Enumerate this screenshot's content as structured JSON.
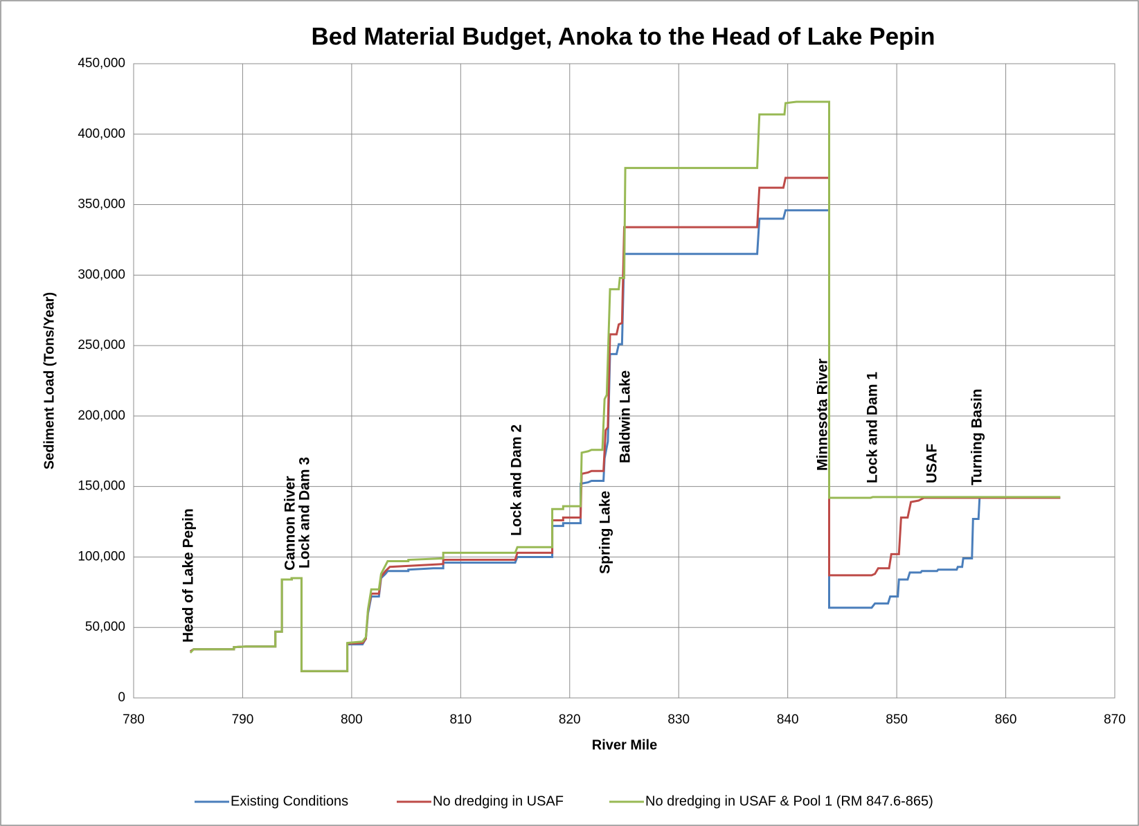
{
  "chart_data": {
    "type": "line",
    "title": "Bed Material Budget, Anoka to the Head of Lake Pepin",
    "x_label": "River Mile",
    "y_label": "Sediment Load (Tons/Year)",
    "xlim": [
      780,
      870
    ],
    "xticks": [
      780,
      790,
      800,
      810,
      820,
      830,
      840,
      850,
      860,
      870
    ],
    "ylim": [
      0,
      450000
    ],
    "yticks": [
      0,
      {
        "value": 50000,
        "label": "50,000"
      },
      {
        "value": 100000,
        "label": "100,000"
      },
      {
        "value": 150000,
        "label": "150,000"
      },
      {
        "value": 200000,
        "label": "200,000"
      },
      {
        "value": 250000,
        "label": "250,000"
      },
      {
        "value": 300000,
        "label": "300,000"
      },
      {
        "value": 350000,
        "label": "350,000"
      },
      {
        "value": 400000,
        "label": "400,000"
      },
      {
        "value": 450000,
        "label": "450,000"
      }
    ],
    "grid": true,
    "legend": "bottom",
    "annotations": [
      "Head of Lake Pepin",
      "Cannon River",
      "Lock and Dam 3",
      "Lock and Dam 2",
      "Spring Lake",
      "Baldwin Lake",
      "Minnesota River",
      "Lock and Dam 1",
      "USAF",
      "Turning Basin"
    ],
    "series": [
      {
        "name": "Existing Conditions",
        "color": "#4a7ebb",
        "x": [
          785.2,
          785.5,
          789.2,
          789.2,
          790.3,
          793,
          793,
          793.6,
          793.6,
          794.5,
          794.5,
          795.4,
          795.4,
          799.6,
          799.6,
          801,
          801.3,
          801.5,
          801.8,
          802.5,
          802.7,
          803.1,
          803.3,
          805.2,
          805.2,
          807.5,
          808.4,
          808.4,
          815,
          815.2,
          818.4,
          818.4,
          819.4,
          819.4,
          821,
          821,
          821.7,
          822,
          823.1,
          823.2,
          823.5,
          823.7,
          824.3,
          824.5,
          824.8,
          825,
          837.2,
          837.4,
          839.6,
          839.8,
          843.8,
          843.8,
          847.7,
          848,
          849.2,
          849.4,
          850.1,
          850.2,
          851,
          851.2,
          852.2,
          852.3,
          853.7,
          853.8,
          855.5,
          855.6,
          856,
          856.1,
          856.9,
          857,
          857.5,
          857.6,
          865
        ],
        "values": [
          33000,
          34500,
          34500,
          36000,
          36500,
          36500,
          47000,
          47000,
          84000,
          84000,
          85000,
          85000,
          19000,
          19000,
          38000,
          38000,
          42000,
          60000,
          72000,
          72000,
          85000,
          88000,
          90000,
          90000,
          91000,
          92000,
          92000,
          96000,
          96000,
          100000,
          100000,
          122000,
          122000,
          124000,
          124000,
          152000,
          153000,
          154000,
          154000,
          170000,
          182000,
          244000,
          244000,
          251000,
          251000,
          315000,
          315000,
          340000,
          340000,
          346000,
          346000,
          64000,
          64000,
          67000,
          67000,
          72000,
          72000,
          84000,
          84000,
          89000,
          89000,
          90000,
          90000,
          91000,
          91000,
          93000,
          93000,
          99000,
          99000,
          127000,
          127000,
          142000,
          142000
        ]
      },
      {
        "name": "No dredging in USAF",
        "color": "#be4b48",
        "x": [
          785.2,
          785.5,
          789.2,
          789.2,
          790.3,
          793,
          793,
          793.6,
          793.6,
          794.5,
          794.5,
          795.4,
          795.4,
          799.6,
          799.6,
          801,
          801.3,
          801.5,
          801.8,
          802.5,
          802.7,
          803.1,
          803.5,
          808.4,
          808.4,
          815,
          815.2,
          818.4,
          818.4,
          819.4,
          819.4,
          821,
          821.1,
          821.7,
          822,
          823.1,
          823.3,
          823.5,
          823.7,
          824.3,
          824.5,
          824.8,
          825,
          837.2,
          837.4,
          839.6,
          839.8,
          843.8,
          843.8,
          847.7,
          848,
          848.3,
          849.3,
          849.5,
          850.2,
          850.4,
          851,
          851.3,
          852,
          852.5,
          865
        ],
        "values": [
          33000,
          34500,
          34500,
          36000,
          36500,
          36500,
          47000,
          47000,
          84000,
          84000,
          85000,
          85000,
          19000,
          19000,
          38500,
          39000,
          42000,
          62000,
          74000,
          74000,
          86000,
          90000,
          93000,
          95000,
          98000,
          98000,
          103000,
          103000,
          126000,
          126000,
          128000,
          128000,
          159000,
          160000,
          161000,
          161000,
          190000,
          192000,
          258000,
          258000,
          265000,
          266000,
          334000,
          334000,
          362000,
          362000,
          369000,
          369000,
          87000,
          87000,
          88000,
          92000,
          92000,
          102000,
          102000,
          128000,
          128000,
          139000,
          140000,
          142000,
          142000
        ]
      },
      {
        "name": "No dredging in USAF & Pool 1 (RM 847.6-865)",
        "color": "#98b954",
        "x": [
          785.2,
          785.5,
          789.2,
          789.2,
          790.3,
          793,
          793,
          793.6,
          793.6,
          794.5,
          794.5,
          795.4,
          795.4,
          799.6,
          799.6,
          801,
          801.3,
          801.5,
          801.8,
          802.5,
          802.7,
          803.1,
          803.3,
          805.2,
          805.2,
          808.4,
          808.4,
          815,
          815.2,
          818.4,
          818.4,
          819.4,
          819.4,
          821,
          821.1,
          821.7,
          822,
          823,
          823.2,
          823.4,
          823.7,
          824.5,
          824.6,
          825,
          825.1,
          837.2,
          837.4,
          839.7,
          839.8,
          840.8,
          843.8,
          843.8,
          847.6,
          847.8,
          865
        ],
        "values": [
          32000,
          34500,
          34500,
          36000,
          36500,
          36500,
          47000,
          47000,
          84000,
          84000,
          85000,
          85000,
          19000,
          19000,
          39000,
          40000,
          43000,
          63000,
          77000,
          77000,
          88000,
          94000,
          97000,
          97000,
          98000,
          99000,
          103000,
          103000,
          107000,
          107000,
          134000,
          134000,
          136000,
          136000,
          174000,
          175000,
          176000,
          176000,
          212000,
          215000,
          290000,
          290000,
          298000,
          298000,
          376000,
          376000,
          414000,
          414000,
          422000,
          423000,
          423000,
          142000,
          142000,
          142500,
          142500
        ]
      }
    ]
  }
}
